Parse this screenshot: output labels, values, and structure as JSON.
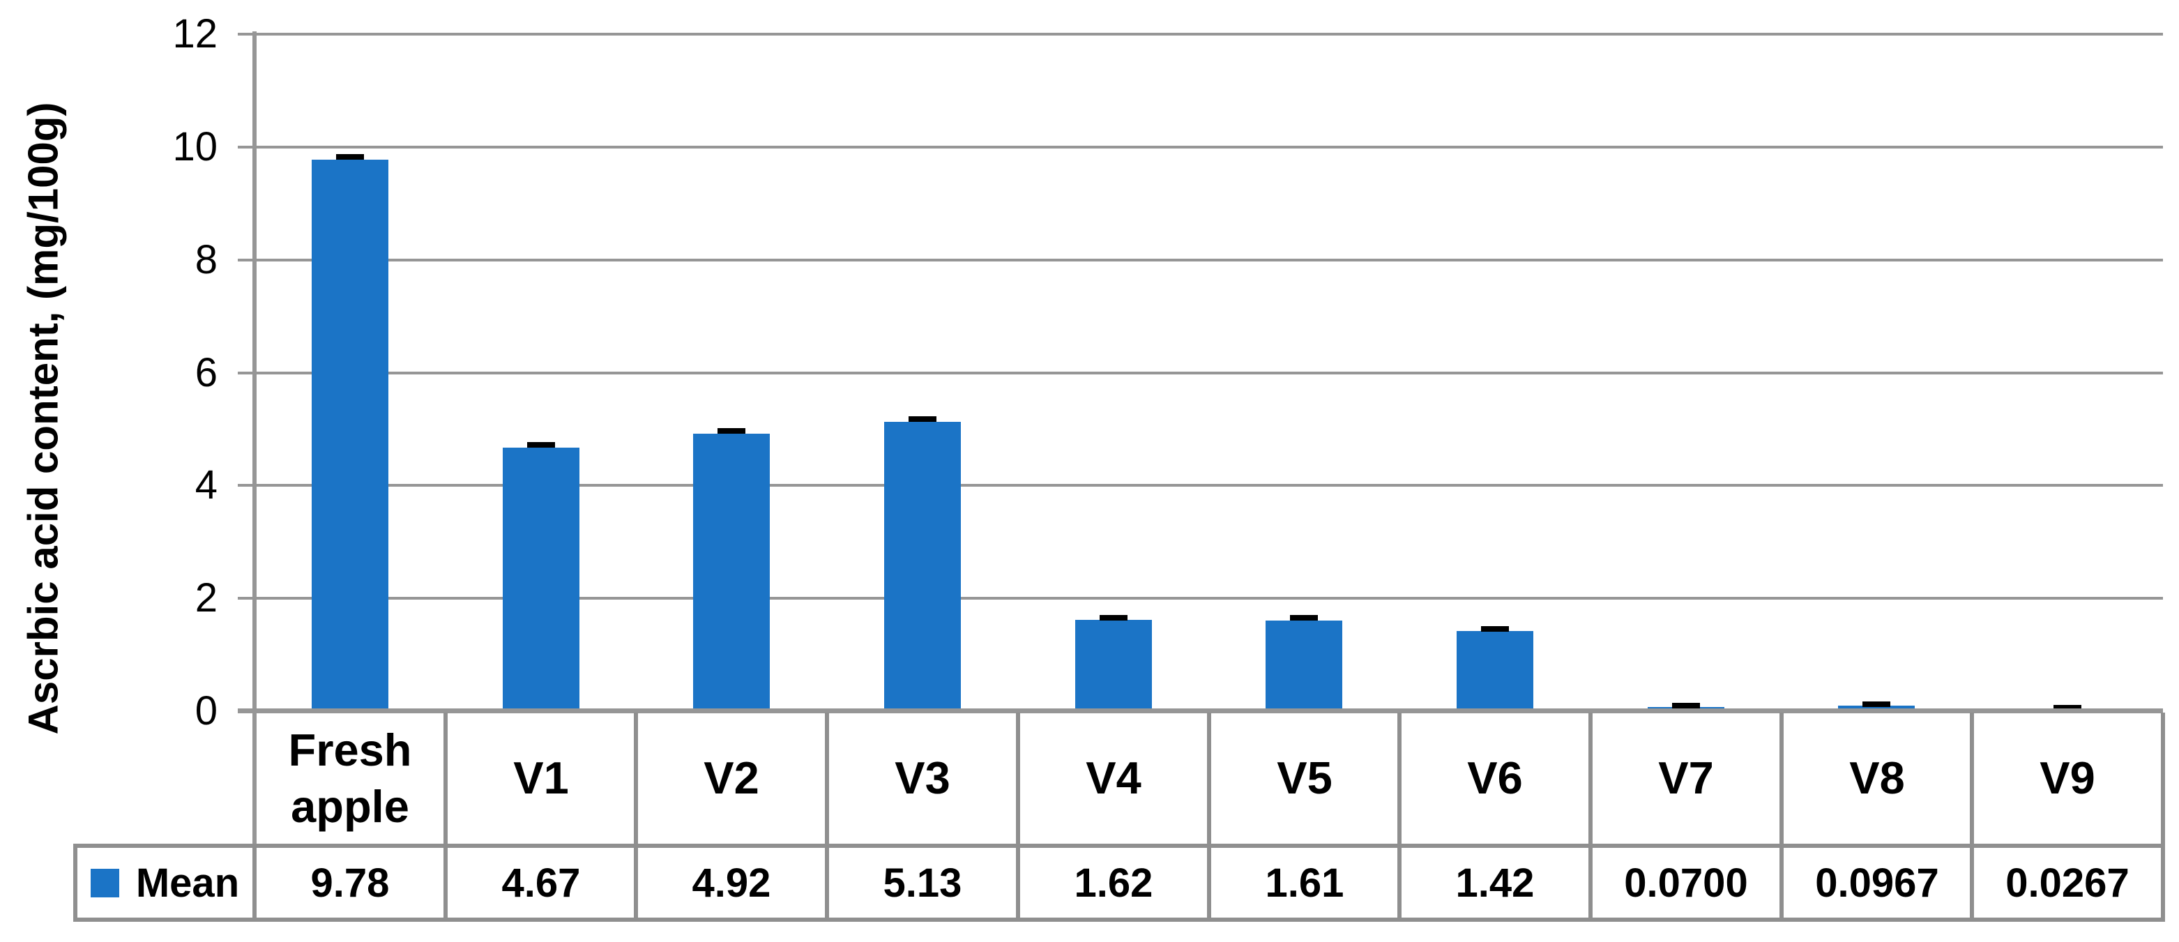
{
  "chart_data": {
    "type": "bar",
    "title": "",
    "xlabel": "",
    "ylabel": "Ascrbic acid content, (mg/100g)",
    "categories": [
      "Fresh apple",
      "V1",
      "V2",
      "V3",
      "V4",
      "V5",
      "V6",
      "V7",
      "V8",
      "V9"
    ],
    "series": [
      {
        "name": "Mean",
        "values": [
          9.78,
          4.67,
          4.92,
          5.13,
          1.62,
          1.61,
          1.42,
          0.07,
          0.0967,
          0.0267
        ]
      }
    ],
    "value_labels": [
      "9.78",
      "4.67",
      "4.92",
      "5.13",
      "1.62",
      "1.61",
      "1.42",
      "0.0700",
      "0.0967",
      "0.0267"
    ],
    "error_bars_approx": [
      0.05,
      0.05,
      0.05,
      0.05,
      0.04,
      0.04,
      0.04,
      0.03,
      0.03,
      0.03
    ],
    "ylim": [
      0,
      12
    ],
    "yticks": [
      0,
      2,
      4,
      6,
      8,
      10,
      12
    ],
    "grid": true,
    "legend_position": "bottom-table",
    "colors": {
      "bar": "#1B74C6",
      "gridline": "#969696",
      "table_border": "#8F8F8F",
      "error_bar": "#000000",
      "text": "#000000"
    },
    "data_table": {
      "row_label": "Mean",
      "legend_swatch_color": "#1B74C6"
    }
  }
}
